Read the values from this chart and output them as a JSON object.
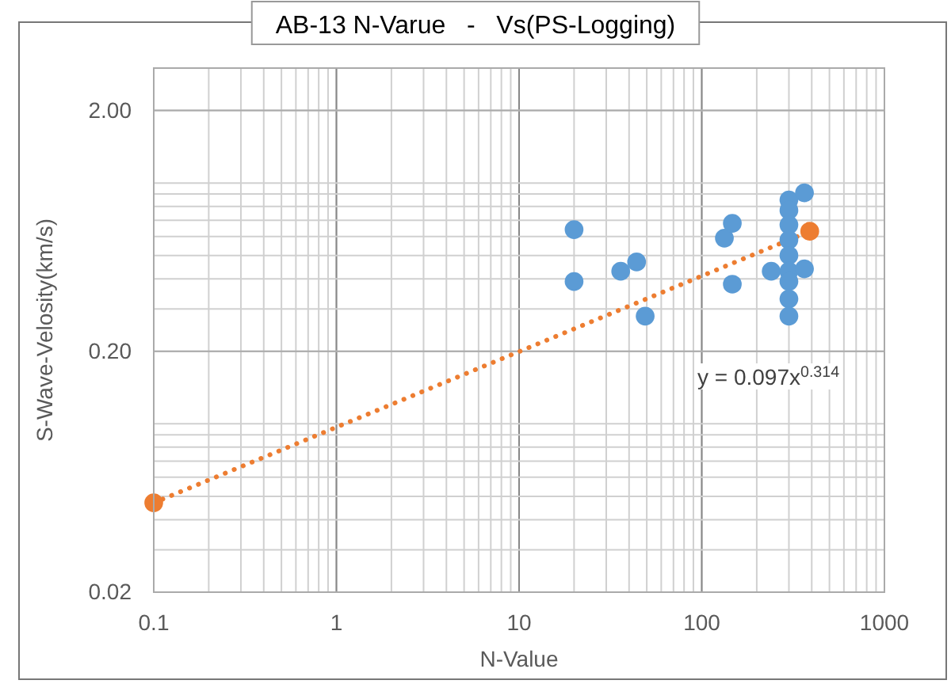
{
  "chart_data": {
    "type": "scatter",
    "title": "AB-13 N-Varue   -   Vs(PS-Logging)",
    "xlabel": "N-Value",
    "ylabel": "S-Wave-Velosity(km/s)",
    "log": "xy",
    "grid": true,
    "marker": "circle",
    "xlim": [
      0.1,
      1000
    ],
    "xticks": [
      0.1,
      1,
      10,
      100,
      1000
    ],
    "ylim": [
      0.02,
      3
    ],
    "yticks": [
      {
        "value": 0.02,
        "label": "0.02"
      },
      {
        "value": 0.2,
        "label": "0.20"
      },
      {
        "value": 2,
        "label": "2.00"
      }
    ],
    "annotations": [
      "y = 0.097x$^{0.314}$"
    ],
    "series": [
      {
        "color": "#5b9bd5",
        "x": [
          20,
          20,
          36,
          44,
          49,
          133,
          147,
          147,
          300,
          300,
          300,
          300,
          300,
          300,
          300,
          300,
          300,
          240,
          365,
          365
        ],
        "values": [
          0.64,
          0.39,
          0.43,
          0.47,
          0.28,
          0.59,
          0.68,
          0.38,
          0.85,
          0.77,
          0.67,
          0.58,
          0.5,
          0.43,
          0.39,
          0.33,
          0.28,
          0.43,
          0.44,
          0.91
        ]
      },
      {
        "color": "#ed7d31",
        "x": [
          0.1,
          390
        ],
        "values": [
          0.047,
          0.63
        ]
      },
      {
        "type": "line",
        "marker": "none",
        "line_style": "dotted",
        "color": "#ed7d31",
        "x": [
          0.1,
          390
        ],
        "values": [
          0.047,
          0.63
        ]
      }
    ]
  }
}
